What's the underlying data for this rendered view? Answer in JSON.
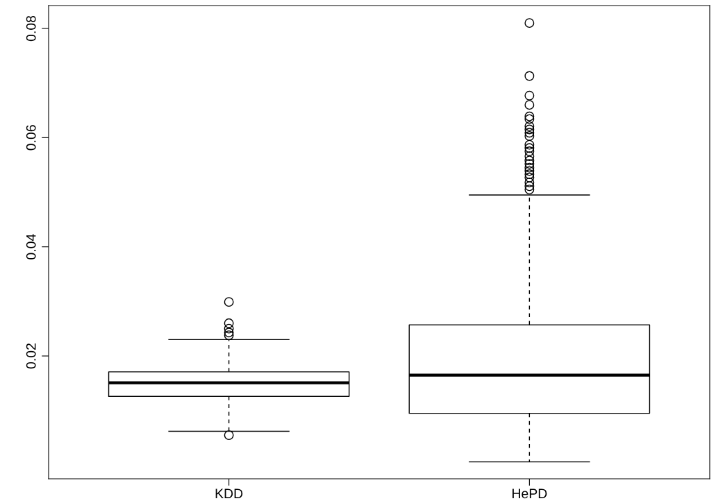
{
  "chart_data": {
    "type": "box",
    "categories": [
      "KDD",
      "HePD"
    ],
    "boxes": [
      {
        "low": 0.0062,
        "q1": 0.0126,
        "median": 0.0151,
        "q3": 0.0171,
        "high": 0.023,
        "outliers": [
          0.0299,
          0.026,
          0.025,
          0.0243,
          0.0238,
          0.0055
        ]
      },
      {
        "low": 0.0006,
        "q1": 0.0095,
        "median": 0.0165,
        "q3": 0.0257,
        "high": 0.0495,
        "outliers": [
          0.081,
          0.0713,
          0.0677,
          0.066,
          0.0639,
          0.0634,
          0.0621,
          0.0615,
          0.0609,
          0.0603,
          0.0587,
          0.0581,
          0.0575,
          0.0566,
          0.0558,
          0.0552,
          0.0545,
          0.0539,
          0.0533,
          0.0527,
          0.0518,
          0.0511,
          0.0505
        ]
      }
    ],
    "ylim": [
      -0.0025,
      0.0842
    ],
    "yticks": [
      0.02,
      0.04,
      0.06,
      0.08
    ],
    "grid": false,
    "marker": "circle"
  }
}
